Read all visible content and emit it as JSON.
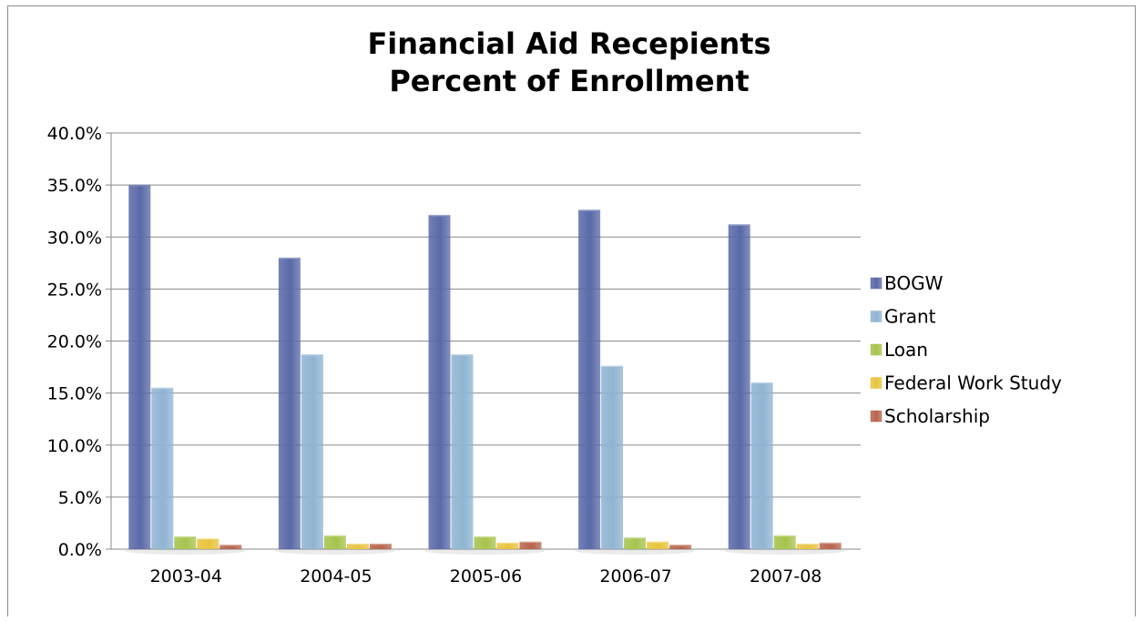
{
  "chart_data": {
    "type": "bar",
    "title_lines": [
      "Financial Aid Recepients",
      "Percent of Enrollment"
    ],
    "categories": [
      "2003-04",
      "2004-05",
      "2005-06",
      "2006-07",
      "2007-08"
    ],
    "series": [
      {
        "name": "BOGW",
        "color": "#5a6aa8",
        "values": [
          34.9,
          27.9,
          32.0,
          32.5,
          31.1
        ]
      },
      {
        "name": "Grant",
        "color": "#8fb4d2",
        "values": [
          15.4,
          18.6,
          18.6,
          17.5,
          15.9
        ]
      },
      {
        "name": "Loan",
        "color": "#a6c34c",
        "values": [
          1.1,
          1.2,
          1.1,
          1.0,
          1.2
        ]
      },
      {
        "name": "Federal Work Study",
        "color": "#e8c43d",
        "values": [
          0.9,
          0.4,
          0.5,
          0.6,
          0.4
        ]
      },
      {
        "name": "Scholarship",
        "color": "#b8644d",
        "values": [
          0.3,
          0.4,
          0.6,
          0.3,
          0.5
        ]
      }
    ],
    "y_ticks": [
      "0.0%",
      "5.0%",
      "10.0%",
      "15.0%",
      "20.0%",
      "25.0%",
      "30.0%",
      "35.0%",
      "40.0%"
    ],
    "ylim": [
      0,
      40
    ],
    "grid": true,
    "legend_position": "right"
  }
}
